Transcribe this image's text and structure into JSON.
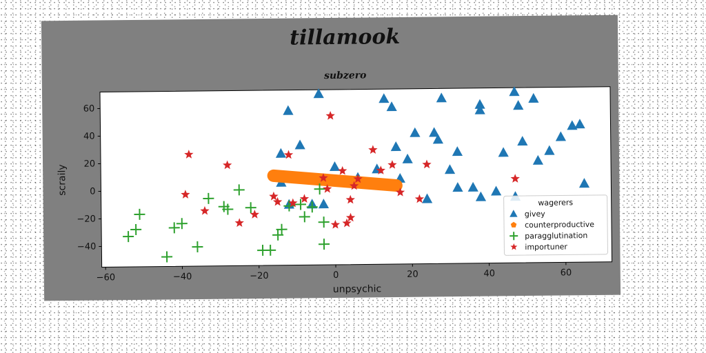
{
  "chart_data": {
    "type": "scatter",
    "title": "tillamook",
    "subtitle": "subzero",
    "xlabel": "unpsychic",
    "ylabel": "scraily",
    "xlim": [
      -61,
      72
    ],
    "ylim": [
      -55,
      72
    ],
    "xticks": [
      -60,
      -40,
      -20,
      0,
      20,
      40,
      60
    ],
    "yticks": [
      -40,
      -20,
      0,
      20,
      40,
      60
    ],
    "grid": false,
    "legend": {
      "title": "wagerers",
      "placement": "lower-right"
    },
    "series": [
      {
        "name": "givey",
        "marker": "triangle",
        "color": "#1f77b4",
        "points": [
          [
            -4,
            69
          ],
          [
            -12,
            57
          ],
          [
            -9,
            32
          ],
          [
            -14,
            26
          ],
          [
            -14,
            5
          ],
          [
            -12,
            -11
          ],
          [
            -6,
            -11
          ],
          [
            -3,
            -11
          ],
          [
            0,
            16
          ],
          [
            6,
            8
          ],
          [
            11,
            14
          ],
          [
            13,
            65
          ],
          [
            15,
            59
          ],
          [
            16,
            30
          ],
          [
            17,
            7
          ],
          [
            19,
            21
          ],
          [
            21,
            40
          ],
          [
            24,
            -8
          ],
          [
            26,
            40
          ],
          [
            27,
            35
          ],
          [
            28,
            65
          ],
          [
            30,
            13
          ],
          [
            32,
            26
          ],
          [
            32,
            0
          ],
          [
            36,
            0
          ],
          [
            38,
            -7
          ],
          [
            42,
            -3
          ],
          [
            44,
            25
          ],
          [
            47,
            69
          ],
          [
            47,
            -7
          ],
          [
            48,
            59
          ],
          [
            49,
            33
          ],
          [
            52,
            64
          ],
          [
            53,
            19
          ],
          [
            56,
            26
          ],
          [
            59,
            36
          ],
          [
            62,
            44
          ],
          [
            64,
            45
          ],
          [
            65,
            2
          ],
          [
            38,
            60
          ],
          [
            38,
            56
          ]
        ]
      },
      {
        "name": "counterproductive",
        "marker": "pentagon",
        "color": "#ff7f0e",
        "line": [
          [
            -16,
            10
          ],
          [
            16,
            2
          ]
        ]
      },
      {
        "name": "paragglutination",
        "marker": "plus",
        "color": "#2ca02c",
        "points": [
          [
            -54,
            -33
          ],
          [
            -52,
            -28
          ],
          [
            -51,
            -17
          ],
          [
            -44,
            -48
          ],
          [
            -42,
            -27
          ],
          [
            -40,
            -24
          ],
          [
            -36,
            -41
          ],
          [
            -33,
            -6
          ],
          [
            -29,
            -12
          ],
          [
            -28,
            -14
          ],
          [
            -25,
            0
          ],
          [
            -22,
            -13
          ],
          [
            -19,
            -44
          ],
          [
            -17,
            -44
          ],
          [
            -15,
            -33
          ],
          [
            -14,
            -29
          ],
          [
            -12,
            -12
          ],
          [
            -9,
            -11
          ],
          [
            -8,
            -20
          ],
          [
            -6,
            -13
          ],
          [
            -4,
            0
          ],
          [
            -3,
            -40
          ],
          [
            -3,
            -24
          ]
        ]
      },
      {
        "name": "importuner",
        "marker": "star",
        "color": "#d62728",
        "points": [
          [
            -38,
            26
          ],
          [
            -39,
            -3
          ],
          [
            -34,
            -15
          ],
          [
            -28,
            18
          ],
          [
            -25,
            -24
          ],
          [
            -21,
            -18
          ],
          [
            -16,
            -5
          ],
          [
            -15,
            -9
          ],
          [
            -12,
            25
          ],
          [
            -11,
            -10
          ],
          [
            -8,
            -7
          ],
          [
            -3,
            8
          ],
          [
            -1,
            53
          ],
          [
            -2,
            0
          ],
          [
            0,
            -26
          ],
          [
            2,
            13
          ],
          [
            3,
            -25
          ],
          [
            4,
            -21
          ],
          [
            4,
            -8
          ],
          [
            5,
            2
          ],
          [
            6,
            7
          ],
          [
            10,
            28
          ],
          [
            12,
            13
          ],
          [
            15,
            17
          ],
          [
            17,
            -3
          ],
          [
            22,
            -8
          ],
          [
            24,
            17
          ],
          [
            47,
            6
          ]
        ]
      }
    ]
  }
}
